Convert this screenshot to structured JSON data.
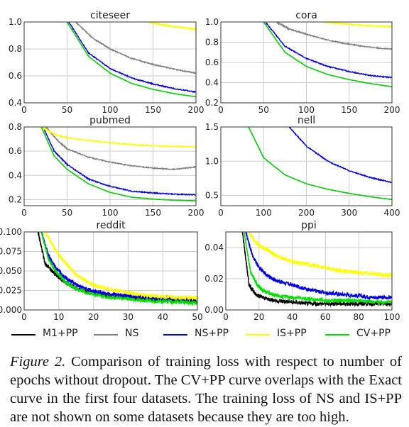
{
  "chart_data": [
    {
      "type": "line",
      "title": "citeseer",
      "xlim": [
        0,
        200
      ],
      "ylim": [
        0.4,
        1.0
      ],
      "xticks": [
        0,
        50,
        100,
        150,
        200
      ],
      "yticks": [
        0.4,
        0.6,
        0.8,
        1.0
      ],
      "xtick_labels": [
        "0",
        "50",
        "100",
        "150",
        "200"
      ],
      "ytick_labels": [
        "0.4",
        "0.6",
        "0.8",
        "1.0"
      ],
      "grid": true,
      "series": [
        {
          "name": "M1+PP",
          "color": "#000000",
          "x": [
            50,
            75,
            100,
            125,
            150,
            175,
            200
          ],
          "y": [
            1.0,
            0.745,
            0.62,
            0.545,
            0.5,
            0.468,
            0.445
          ]
        },
        {
          "name": "NS",
          "color": "#808080",
          "x": [
            60,
            80,
            100,
            125,
            150,
            175,
            200
          ],
          "y": [
            1.0,
            0.88,
            0.8,
            0.73,
            0.685,
            0.65,
            0.62
          ]
        },
        {
          "name": "NS+PP",
          "color": "#0000dd",
          "x": [
            52,
            75,
            100,
            125,
            150,
            175,
            200
          ],
          "y": [
            1.0,
            0.77,
            0.655,
            0.585,
            0.54,
            0.505,
            0.48
          ]
        },
        {
          "name": "IS+PP",
          "color": "#ffff00",
          "x": [
            145,
            160,
            175,
            190,
            200
          ],
          "y": [
            1.0,
            0.98,
            0.965,
            0.955,
            0.945
          ]
        },
        {
          "name": "CV+PP",
          "color": "#00dd00",
          "x": [
            50,
            75,
            100,
            125,
            150,
            175,
            200
          ],
          "y": [
            1.0,
            0.745,
            0.62,
            0.545,
            0.5,
            0.468,
            0.445
          ]
        }
      ]
    },
    {
      "type": "line",
      "title": "cora",
      "xlim": [
        0,
        200
      ],
      "ylim": [
        0.2,
        1.0
      ],
      "xticks": [
        0,
        50,
        100,
        150,
        200
      ],
      "yticks": [
        0.2,
        0.4,
        0.6,
        0.8,
        1.0
      ],
      "xtick_labels": [
        "0",
        "50",
        "100",
        "150",
        "200"
      ],
      "ytick_labels": [
        "0.2",
        "0.4",
        "0.6",
        "0.8",
        "1.0"
      ],
      "grid": true,
      "series": [
        {
          "name": "M1+PP",
          "color": "#000000",
          "x": [
            50,
            75,
            100,
            125,
            150,
            175,
            200
          ],
          "y": [
            1.0,
            0.7,
            0.56,
            0.48,
            0.43,
            0.39,
            0.36
          ]
        },
        {
          "name": "NS",
          "color": "#808080",
          "x": [
            65,
            80,
            100,
            125,
            150,
            175,
            200
          ],
          "y": [
            1.0,
            0.93,
            0.88,
            0.82,
            0.78,
            0.75,
            0.73
          ]
        },
        {
          "name": "NS+PP",
          "color": "#0000dd",
          "x": [
            52,
            75,
            100,
            125,
            150,
            175,
            200
          ],
          "y": [
            1.0,
            0.76,
            0.64,
            0.56,
            0.51,
            0.47,
            0.45
          ]
        },
        {
          "name": "IS+PP",
          "color": "#ffff00",
          "x": [
            120,
            140,
            160,
            180,
            200
          ],
          "y": [
            1.0,
            0.985,
            0.97,
            0.96,
            0.955
          ]
        },
        {
          "name": "CV+PP",
          "color": "#00dd00",
          "x": [
            50,
            75,
            100,
            125,
            150,
            175,
            200
          ],
          "y": [
            1.0,
            0.7,
            0.56,
            0.48,
            0.43,
            0.39,
            0.36
          ]
        }
      ]
    },
    {
      "type": "line",
      "title": "pubmed",
      "xlim": [
        0,
        200
      ],
      "ylim": [
        0.15,
        0.8
      ],
      "xticks": [
        0,
        50,
        100,
        150,
        200
      ],
      "yticks": [
        0.2,
        0.4,
        0.6,
        0.8
      ],
      "xtick_labels": [
        "0",
        "50",
        "100",
        "150",
        "200"
      ],
      "ytick_labels": [
        "0.2",
        "0.4",
        "0.6",
        "0.8"
      ],
      "grid": true,
      "series": [
        {
          "name": "M1+PP",
          "color": "#000000",
          "x": [
            20,
            35,
            50,
            75,
            100,
            125,
            150,
            175,
            200
          ],
          "y": [
            0.8,
            0.56,
            0.45,
            0.33,
            0.26,
            0.22,
            0.205,
            0.195,
            0.19
          ]
        },
        {
          "name": "NS",
          "color": "#808080",
          "x": [
            25,
            40,
            50,
            75,
            100,
            125,
            150,
            175,
            200
          ],
          "y": [
            0.8,
            0.68,
            0.62,
            0.55,
            0.51,
            0.48,
            0.46,
            0.45,
            0.47
          ]
        },
        {
          "name": "NS+PP",
          "color": "#0000dd",
          "x": [
            22,
            35,
            50,
            75,
            100,
            125,
            150,
            175,
            200
          ],
          "y": [
            0.8,
            0.6,
            0.49,
            0.37,
            0.31,
            0.27,
            0.255,
            0.245,
            0.24
          ]
        },
        {
          "name": "IS+PP",
          "color": "#ffff00",
          "x": [
            20,
            35,
            50,
            75,
            100,
            125,
            150,
            175,
            200
          ],
          "y": [
            0.8,
            0.74,
            0.71,
            0.69,
            0.67,
            0.655,
            0.645,
            0.64,
            0.635
          ]
        },
        {
          "name": "CV+PP",
          "color": "#00dd00",
          "x": [
            20,
            35,
            50,
            75,
            100,
            125,
            150,
            175,
            200
          ],
          "y": [
            0.8,
            0.56,
            0.45,
            0.33,
            0.26,
            0.22,
            0.205,
            0.195,
            0.19
          ]
        }
      ]
    },
    {
      "type": "line",
      "title": "nell",
      "xlim": [
        0,
        400
      ],
      "ylim": [
        0.35,
        1.5
      ],
      "xticks": [
        0,
        100,
        200,
        300,
        400
      ],
      "yticks": [
        0.5,
        1.0,
        1.5
      ],
      "xtick_labels": [
        "0",
        "100",
        "200",
        "300",
        "400"
      ],
      "ytick_labels": [
        "0.5",
        "1.0",
        "1.5"
      ],
      "grid": true,
      "series": [
        {
          "name": "M1+PP",
          "color": "#000000",
          "x": [
            65,
            100,
            150,
            200,
            250,
            300,
            350,
            400
          ],
          "y": [
            1.5,
            1.05,
            0.8,
            0.67,
            0.59,
            0.53,
            0.48,
            0.44
          ]
        },
        {
          "name": "NS+PP",
          "color": "#0000dd",
          "x": [
            160,
            200,
            250,
            300,
            350,
            400
          ],
          "y": [
            1.5,
            1.22,
            1.0,
            0.86,
            0.76,
            0.69
          ]
        },
        {
          "name": "CV+PP",
          "color": "#00dd00",
          "x": [
            65,
            100,
            150,
            200,
            250,
            300,
            350,
            400
          ],
          "y": [
            1.5,
            1.05,
            0.8,
            0.67,
            0.59,
            0.53,
            0.48,
            0.44
          ]
        }
      ]
    },
    {
      "type": "line",
      "title": "reddit",
      "xlim": [
        0,
        50
      ],
      "ylim": [
        0.0,
        0.1
      ],
      "xticks": [
        0,
        10,
        20,
        30,
        40,
        50
      ],
      "yticks": [
        0.0,
        0.025,
        0.05,
        0.075,
        0.1
      ],
      "xtick_labels": [
        "0",
        "10",
        "20",
        "30",
        "40",
        "50"
      ],
      "ytick_labels": [
        "0.000",
        "0.025",
        "0.050",
        "0.075",
        "0.100"
      ],
      "grid": true,
      "series": [
        {
          "name": "M1+PP",
          "color": "#000000",
          "x": [
            4,
            6,
            8,
            10,
            12,
            15,
            20,
            25,
            30,
            35,
            40,
            45,
            50
          ],
          "y": [
            0.1,
            0.06,
            0.05,
            0.042,
            0.035,
            0.028,
            0.022,
            0.018,
            0.016,
            0.014,
            0.013,
            0.012,
            0.011
          ]
        },
        {
          "name": "NS+PP",
          "color": "#0000dd",
          "x": [
            5,
            7,
            9,
            11,
            13,
            16,
            20,
            25,
            30,
            35,
            40,
            45,
            50
          ],
          "y": [
            0.1,
            0.07,
            0.055,
            0.045,
            0.038,
            0.03,
            0.024,
            0.02,
            0.018,
            0.016,
            0.015,
            0.014,
            0.013
          ]
        },
        {
          "name": "IS+PP",
          "color": "#ffff00",
          "x": [
            6,
            8,
            10,
            12,
            15,
            20,
            25,
            30,
            35,
            40,
            45,
            50
          ],
          "y": [
            0.1,
            0.085,
            0.07,
            0.06,
            0.045,
            0.032,
            0.026,
            0.022,
            0.019,
            0.017,
            0.016,
            0.015
          ]
        },
        {
          "name": "CV+PP",
          "color": "#00dd00",
          "x": [
            5,
            7,
            9,
            11,
            13,
            16,
            20,
            25,
            30,
            35,
            40,
            45,
            50
          ],
          "y": [
            0.1,
            0.065,
            0.05,
            0.04,
            0.032,
            0.025,
            0.02,
            0.016,
            0.014,
            0.012,
            0.011,
            0.01,
            0.009
          ]
        }
      ]
    },
    {
      "type": "line",
      "title": "ppi",
      "xlim": [
        0,
        100
      ],
      "ylim": [
        0.0,
        0.05
      ],
      "xticks": [
        0,
        20,
        40,
        60,
        80,
        100
      ],
      "yticks": [
        0.0,
        0.02,
        0.04
      ],
      "xtick_labels": [
        "0",
        "20",
        "40",
        "60",
        "80",
        "100"
      ],
      "ytick_labels": [
        "0.00",
        "0.02",
        "0.04"
      ],
      "grid": true,
      "series": [
        {
          "name": "M1+PP",
          "color": "#000000",
          "x": [
            10,
            14,
            18,
            22,
            30,
            40,
            50,
            60,
            70,
            80,
            90,
            100
          ],
          "y": [
            0.05,
            0.016,
            0.01,
            0.008,
            0.006,
            0.005,
            0.004,
            0.004,
            0.004,
            0.004,
            0.004,
            0.004
          ]
        },
        {
          "name": "NS+PP",
          "color": "#0000dd",
          "x": [
            12,
            16,
            20,
            25,
            30,
            40,
            50,
            60,
            70,
            80,
            90,
            100
          ],
          "y": [
            0.05,
            0.035,
            0.027,
            0.022,
            0.019,
            0.016,
            0.013,
            0.011,
            0.01,
            0.009,
            0.008,
            0.008
          ]
        },
        {
          "name": "IS+PP",
          "color": "#ffff00",
          "x": [
            14,
            18,
            22,
            26,
            30,
            40,
            50,
            60,
            70,
            80,
            90,
            100
          ],
          "y": [
            0.05,
            0.043,
            0.04,
            0.038,
            0.035,
            0.031,
            0.029,
            0.027,
            0.025,
            0.024,
            0.023,
            0.022
          ]
        },
        {
          "name": "CV+PP",
          "color": "#00dd00",
          "x": [
            11,
            15,
            19,
            23,
            30,
            40,
            50,
            60,
            70,
            80,
            90,
            100
          ],
          "y": [
            0.05,
            0.024,
            0.016,
            0.012,
            0.009,
            0.008,
            0.007,
            0.006,
            0.006,
            0.006,
            0.005,
            0.005
          ]
        }
      ]
    }
  ],
  "legend": [
    {
      "label": "M1+PP",
      "color": "#000000"
    },
    {
      "label": "NS",
      "color": "#808080"
    },
    {
      "label": "NS+PP",
      "color": "#0000dd"
    },
    {
      "label": "IS+PP",
      "color": "#ffff00"
    },
    {
      "label": "CV+PP",
      "color": "#00dd00"
    }
  ],
  "caption": {
    "label": "Figure 2.",
    "text": "Comparison of training loss with respect to number of epochs without dropout. The CV+PP curve overlaps with the Exact curve in the first four datasets. The training loss of NS and IS+PP are not shown on some datasets because they are too high."
  }
}
